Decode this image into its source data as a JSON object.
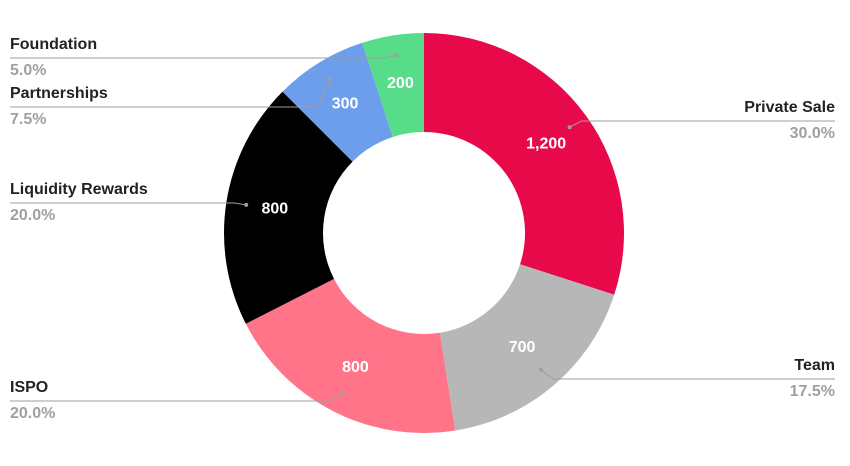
{
  "chart_data": {
    "type": "donut",
    "categories": [
      "Private Sale",
      "Team",
      "ISPO",
      "Liquidity Rewards",
      "Partnerships",
      "Foundation"
    ],
    "values": [
      1200,
      700,
      800,
      800,
      300,
      200
    ],
    "value_labels": [
      "1,200",
      "700",
      "800",
      "800",
      "300",
      "200"
    ],
    "percent_labels": [
      "30.0%",
      "17.5%",
      "20.0%",
      "20.0%",
      "7.5%",
      "5.0%"
    ],
    "colors": [
      "#e8094b",
      "#b7b7b7",
      "#ff7489",
      "#000000",
      "#6d9eeb",
      "#57dd8a"
    ]
  }
}
